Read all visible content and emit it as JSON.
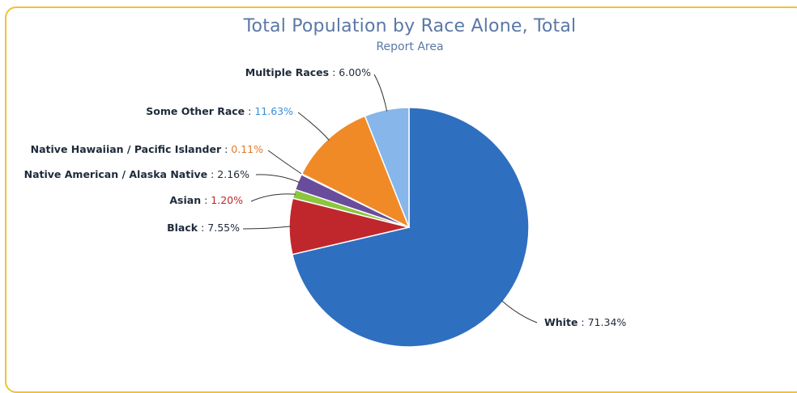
{
  "chart_data": {
    "type": "pie",
    "title": "Total Population by Race Alone, Total",
    "subtitle": "Report Area",
    "slices": [
      {
        "name": "White",
        "value": 71.34,
        "display": "71.34%",
        "color": "#2f6fbf",
        "value_color": "#1e2a3a"
      },
      {
        "name": "Black",
        "value": 7.55,
        "display": "7.55%",
        "color": "#c0272d",
        "value_color": "#1e2a3a"
      },
      {
        "name": "Asian",
        "value": 1.2,
        "display": "1.20%",
        "color": "#8cc63f",
        "value_color": "#c0272d"
      },
      {
        "name": "Native American / Alaska Native",
        "value": 2.16,
        "display": "2.16%",
        "color": "#6a4c9c",
        "value_color": "#1e2a3a"
      },
      {
        "name": "Native Hawaiian / Pacific Islander",
        "value": 0.11,
        "display": "0.11%",
        "color": "#2bb5b5",
        "value_color": "#e07a2a"
      },
      {
        "name": "Some Other Race",
        "value": 11.63,
        "display": "11.63%",
        "color": "#ef8a27",
        "value_color": "#3a8fd8"
      },
      {
        "name": "Multiple Races",
        "value": 6.0,
        "display": "6.00%",
        "color": "#86b6ea",
        "value_color": "#1e2a3a"
      }
    ],
    "legend": "none",
    "labels": "outside-with-connectors"
  }
}
